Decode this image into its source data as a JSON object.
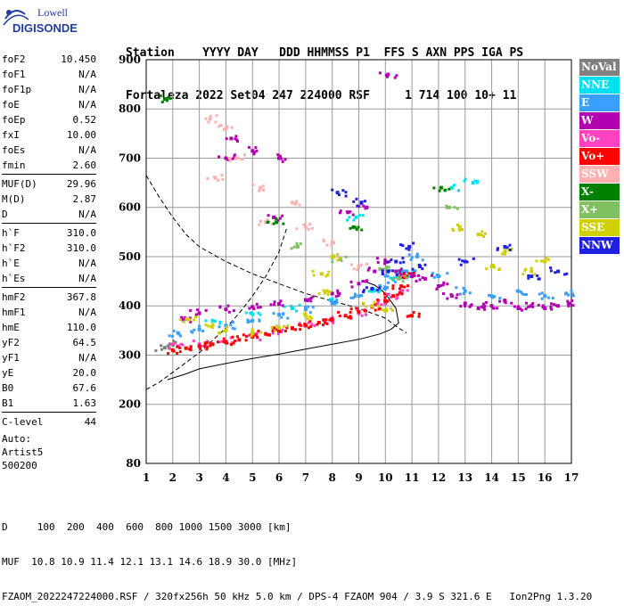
{
  "logo": {
    "line1": "Lowell",
    "line2": "DIGISONDE"
  },
  "header": {
    "row1": "Station    YYYY DAY   DDD HHMMSS P1  FFS S AXN PPS IGA PS",
    "row2": "Fortaleza 2022 Set04 247 224000 RSF     1 714 100 10+ 11"
  },
  "params": [
    [
      {
        "k": "foF2",
        "v": "10.450"
      },
      {
        "k": "foF1",
        "v": "N/A"
      },
      {
        "k": "foF1p",
        "v": "N/A"
      },
      {
        "k": "foE",
        "v": "N/A"
      },
      {
        "k": "foEp",
        "v": "0.52"
      },
      {
        "k": "fxI",
        "v": "10.00"
      },
      {
        "k": "foEs",
        "v": "N/A"
      },
      {
        "k": "fmin",
        "v": "2.60"
      }
    ],
    [
      {
        "k": "MUF(D)",
        "v": "29.96"
      },
      {
        "k": "M(D)",
        "v": "2.87"
      },
      {
        "k": "D",
        "v": "N/A"
      }
    ],
    [
      {
        "k": "h`F",
        "v": "310.0"
      },
      {
        "k": "h`F2",
        "v": "310.0"
      },
      {
        "k": "h`E",
        "v": "N/A"
      },
      {
        "k": "h`Es",
        "v": "N/A"
      }
    ],
    [
      {
        "k": "hmF2",
        "v": "367.8"
      },
      {
        "k": "hmF1",
        "v": "N/A"
      },
      {
        "k": "hmE",
        "v": "110.0"
      },
      {
        "k": "yF2",
        "v": "64.5"
      },
      {
        "k": "yF1",
        "v": "N/A"
      },
      {
        "k": "yE",
        "v": "20.0"
      },
      {
        "k": "B0",
        "v": "67.6"
      },
      {
        "k": "B1",
        "v": "1.63"
      }
    ],
    [
      {
        "k": "C-level",
        "v": "44"
      }
    ]
  ],
  "auto": [
    "Auto:",
    "Artist5",
    "500200"
  ],
  "legend": [
    {
      "label": "NoVal",
      "color": "#808080"
    },
    {
      "label": "NNE",
      "color": "#00e0f0"
    },
    {
      "label": "E",
      "color": "#3aa0ff"
    },
    {
      "label": "W",
      "color": "#b000b0"
    },
    {
      "label": "Vo-",
      "color": "#ff40c0"
    },
    {
      "label": "Vo+",
      "color": "#ff0000"
    },
    {
      "label": "SSW",
      "color": "#ffb0b0"
    },
    {
      "label": "X-",
      "color": "#008000"
    },
    {
      "label": "X+",
      "color": "#80c060"
    },
    {
      "label": "SSE",
      "color": "#d0d000"
    },
    {
      "label": "NNW",
      "color": "#2020e0"
    }
  ],
  "footer": {
    "row1": "D     100  200  400  600  800 1000 1500 3000 [km]",
    "row2": "MUF  10.8 10.9 11.4 12.1 13.1 14.6 18.9 30.0 [MHz]",
    "row3": "FZAOM_2022247224000.RSF / 320fx256h 50 kHz 5.0 km / DPS-4 FZAOM 904 / 3.9 S 321.6 E   Ion2Png 1.3.20"
  },
  "chart_data": {
    "type": "scatter",
    "title": "",
    "xlabel": "",
    "ylabel": "",
    "xlim": [
      1,
      17
    ],
    "ylim": [
      80,
      900
    ],
    "xticks": [
      1,
      2,
      3,
      4,
      5,
      6,
      7,
      8,
      9,
      10,
      11,
      12,
      13,
      14,
      15,
      16,
      17
    ],
    "yticks": [
      80,
      200,
      300,
      400,
      500,
      600,
      700,
      800,
      900
    ],
    "grid": true,
    "series": [
      {
        "color": "#808080",
        "points": [
          [
            1.7,
            315
          ],
          [
            1.9,
            322
          ]
        ]
      },
      {
        "color": "#00e0f0",
        "points": [
          [
            3.5,
            370
          ],
          [
            5.0,
            383
          ],
          [
            6.5,
            395
          ],
          [
            8.0,
            410
          ],
          [
            9.5,
            430
          ],
          [
            10.3,
            455
          ],
          [
            10.7,
            465
          ],
          [
            12.5,
            640
          ],
          [
            13.3,
            650
          ],
          [
            8.9,
            580
          ]
        ]
      },
      {
        "color": "#3aa0ff",
        "points": [
          [
            2.2,
            345
          ],
          [
            3.0,
            352
          ],
          [
            4.0,
            360
          ],
          [
            5.0,
            370
          ],
          [
            6.0,
            382
          ],
          [
            7.0,
            393
          ],
          [
            8.0,
            405
          ],
          [
            9.0,
            420
          ],
          [
            9.8,
            440
          ],
          [
            10.3,
            455
          ],
          [
            10.8,
            470
          ],
          [
            11.2,
            500
          ],
          [
            12.0,
            460
          ],
          [
            13.0,
            430
          ],
          [
            14.0,
            420
          ],
          [
            15.0,
            430
          ],
          [
            16.0,
            420
          ],
          [
            16.8,
            425
          ]
        ]
      },
      {
        "color": "#b000b0",
        "points": [
          [
            2.4,
            372
          ],
          [
            3.0,
            385
          ],
          [
            4.0,
            393
          ],
          [
            5.0,
            398
          ],
          [
            6.0,
            404
          ],
          [
            7.0,
            412
          ],
          [
            8.0,
            425
          ],
          [
            9.0,
            445
          ],
          [
            9.6,
            470
          ],
          [
            10.0,
            490
          ],
          [
            10.4,
            470
          ],
          [
            11.0,
            460
          ],
          [
            11.5,
            455
          ],
          [
            12.0,
            440
          ],
          [
            12.5,
            420
          ],
          [
            13.0,
            405
          ],
          [
            13.5,
            395
          ],
          [
            14.0,
            400
          ],
          [
            14.5,
            410
          ],
          [
            15.0,
            395
          ],
          [
            15.5,
            400
          ],
          [
            16.0,
            395
          ],
          [
            16.5,
            400
          ],
          [
            16.9,
            405
          ],
          [
            4.0,
            700
          ],
          [
            4.2,
            740
          ],
          [
            5.0,
            715
          ],
          [
            6.0,
            700
          ],
          [
            5.8,
            580
          ],
          [
            8.6,
            590
          ],
          [
            9.3,
            600
          ],
          [
            10.1,
            870
          ]
        ]
      },
      {
        "color": "#ff40c0",
        "points": [
          [
            2.2,
            318
          ],
          [
            3.0,
            322
          ],
          [
            4.0,
            328
          ],
          [
            5.0,
            338
          ],
          [
            6.0,
            350
          ],
          [
            7.0,
            360
          ],
          [
            8.0,
            370
          ],
          [
            9.0,
            385
          ],
          [
            10.0,
            405
          ],
          [
            10.3,
            420
          ],
          [
            10.6,
            430
          ]
        ]
      },
      {
        "color": "#ff0000",
        "points": [
          [
            2.0,
            310
          ],
          [
            2.5,
            314
          ],
          [
            3.0,
            318
          ],
          [
            3.5,
            322
          ],
          [
            4.0,
            326
          ],
          [
            4.5,
            331
          ],
          [
            5.0,
            337
          ],
          [
            5.5,
            343
          ],
          [
            6.0,
            349
          ],
          [
            6.5,
            355
          ],
          [
            7.0,
            360
          ],
          [
            7.5,
            366
          ],
          [
            8.0,
            372
          ],
          [
            8.5,
            380
          ],
          [
            9.0,
            388
          ],
          [
            9.5,
            398
          ],
          [
            10.0,
            410
          ],
          [
            10.3,
            420
          ],
          [
            10.6,
            440
          ],
          [
            10.8,
            460
          ],
          [
            11.0,
            380
          ]
        ]
      },
      {
        "color": "#ffb0b0",
        "points": [
          [
            3.4,
            780
          ],
          [
            4.0,
            760
          ],
          [
            3.6,
            660
          ],
          [
            4.4,
            700
          ],
          [
            5.3,
            640
          ],
          [
            6.5,
            610
          ],
          [
            5.5,
            570
          ],
          [
            7.0,
            560
          ],
          [
            8.0,
            530
          ],
          [
            9.0,
            480
          ]
        ]
      },
      {
        "color": "#008000",
        "points": [
          [
            1.7,
            820
          ],
          [
            5.9,
            570
          ],
          [
            8.8,
            560
          ],
          [
            12.1,
            640
          ]
        ]
      },
      {
        "color": "#80c060",
        "points": [
          [
            6.7,
            520
          ],
          [
            8.3,
            495
          ],
          [
            9.8,
            475
          ],
          [
            10.5,
            455
          ],
          [
            12.4,
            600
          ]
        ]
      },
      {
        "color": "#d0d000",
        "points": [
          [
            2.6,
            372
          ],
          [
            3.5,
            360
          ],
          [
            4.0,
            350
          ],
          [
            5.0,
            345
          ],
          [
            6.0,
            355
          ],
          [
            7.0,
            380
          ],
          [
            7.8,
            430
          ],
          [
            8.0,
            500
          ],
          [
            7.6,
            465
          ],
          [
            9.5,
            400
          ],
          [
            10.0,
            390
          ],
          [
            12.8,
            560
          ],
          [
            13.5,
            545
          ],
          [
            14.5,
            510
          ],
          [
            14.0,
            480
          ],
          [
            15.5,
            470
          ],
          [
            16.0,
            490
          ]
        ]
      },
      {
        "color": "#2020e0",
        "points": [
          [
            9.5,
            435
          ],
          [
            10.1,
            470
          ],
          [
            10.4,
            490
          ],
          [
            10.9,
            520
          ],
          [
            11.3,
            480
          ],
          [
            13.0,
            490
          ],
          [
            14.5,
            520
          ],
          [
            15.5,
            460
          ],
          [
            16.5,
            470
          ],
          [
            8.2,
            630
          ],
          [
            9.1,
            610
          ]
        ]
      }
    ],
    "profile_line": {
      "color": "#000000",
      "points": [
        [
          1.8,
          250
        ],
        [
          2.5,
          262
        ],
        [
          3.0,
          272
        ],
        [
          4.0,
          283
        ],
        [
          5.0,
          293
        ],
        [
          6.0,
          302
        ],
        [
          7.0,
          312
        ],
        [
          8.0,
          322
        ],
        [
          9.0,
          332
        ],
        [
          9.8,
          343
        ],
        [
          10.2,
          352
        ],
        [
          10.5,
          365
        ],
        [
          10.4,
          395
        ],
        [
          10.0,
          425
        ],
        [
          9.6,
          442
        ],
        [
          9.2,
          450
        ]
      ]
    },
    "muf_curve": {
      "color": "#000000",
      "dash": true,
      "points": [
        [
          1.0,
          665
        ],
        [
          1.5,
          620
        ],
        [
          2.0,
          580
        ],
        [
          2.5,
          545
        ],
        [
          3.0,
          520
        ],
        [
          4.0,
          490
        ],
        [
          5.0,
          465
        ],
        [
          6.0,
          445
        ],
        [
          7.0,
          425
        ],
        [
          8.0,
          410
        ],
        [
          9.0,
          395
        ],
        [
          10.0,
          375
        ],
        [
          10.5,
          355
        ],
        [
          10.8,
          345
        ]
      ]
    },
    "muf_curve2": {
      "color": "#000000",
      "dash": true,
      "points": [
        [
          1.0,
          230
        ],
        [
          1.5,
          245
        ],
        [
          2.0,
          265
        ],
        [
          2.5,
          285
        ],
        [
          3.0,
          305
        ],
        [
          3.5,
          330
        ],
        [
          4.0,
          355
        ],
        [
          4.5,
          385
        ],
        [
          5.0,
          420
        ],
        [
          5.5,
          460
        ],
        [
          6.0,
          510
        ],
        [
          6.3,
          560
        ]
      ]
    }
  }
}
